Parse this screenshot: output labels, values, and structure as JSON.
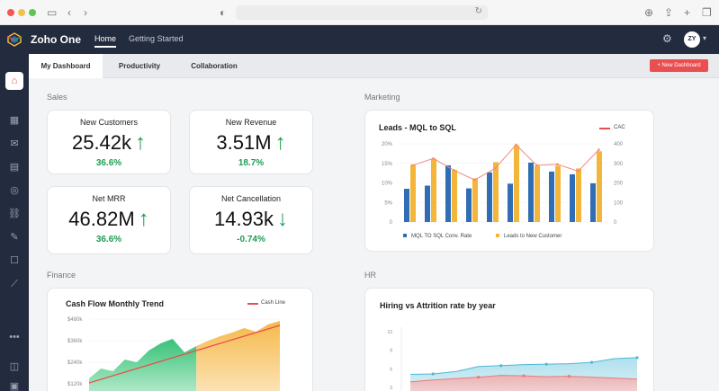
{
  "browser": {
    "icons": {
      "sidebar_toggle": "sidebar-icon",
      "back": "chevron-left-icon",
      "forward": "chevron-right-icon",
      "shield": "shield-icon",
      "reload": "reload-icon",
      "download": "download-icon",
      "share": "share-icon",
      "new_tab": "plus-icon",
      "tabs": "tabs-icon"
    }
  },
  "header": {
    "brand": "Zoho One",
    "nav": [
      {
        "label": "Home",
        "active": true
      },
      {
        "label": "Getting Started",
        "active": false
      }
    ],
    "avatar_initials": "ZY"
  },
  "sidebar": {
    "items": [
      "home-icon",
      "apps-icon",
      "inbox-icon",
      "analytics-icon",
      "finance-icon",
      "workflow-icon",
      "tools-icon",
      "chat-icon",
      "chart-icon",
      "more-icon",
      "help-icon",
      "collapse-icon"
    ]
  },
  "tabs": [
    {
      "label": "My Dashboard",
      "active": true
    },
    {
      "label": "Productivity",
      "active": false
    },
    {
      "label": "Collaboration",
      "active": false
    }
  ],
  "new_dashboard_label": "+ New Dashboard",
  "sections": {
    "sales": "Sales",
    "marketing": "Marketing",
    "finance": "Finance",
    "hr": "HR"
  },
  "kpis": [
    {
      "title": "New Customers",
      "value": "25.42k",
      "arrow": "↑",
      "pct": "36.6%"
    },
    {
      "title": "New Revenue",
      "value": "3.51M",
      "arrow": "↑",
      "pct": "18.7%"
    },
    {
      "title": "Net MRR",
      "value": "46.82M",
      "arrow": "↑",
      "pct": "36.6%"
    },
    {
      "title": "Net Cancellation",
      "value": "14.93k",
      "arrow": "↓",
      "pct": "-0.74%"
    }
  ],
  "colors": {
    "accent": "#e94f4f",
    "positive": "#1e9e52",
    "blue_series": "#2f6db5",
    "orange_series": "#f4b63a",
    "dark": "#232b3e"
  },
  "chart_data": [
    {
      "type": "bar",
      "title": "Leads - MQL to SQL",
      "categories": [
        "1",
        "2",
        "3",
        "4",
        "5",
        "6",
        "7",
        "8",
        "9",
        "10"
      ],
      "y_left_ticks": [
        "20%",
        "15%",
        "10%",
        "5%",
        "0"
      ],
      "y_right_ticks": [
        "400",
        "300",
        "200",
        "100",
        "0"
      ],
      "ylim_left": [
        0,
        20
      ],
      "ylim_right": [
        0,
        400
      ],
      "series": [
        {
          "name": "MQL TO SQL Conv. Rate",
          "values": [
            8.5,
            9.3,
            14.5,
            8.6,
            12.7,
            9.8,
            15.2,
            12.9,
            12.2,
            9.9
          ]
        },
        {
          "name": "Leads to New Customer",
          "values": [
            14.6,
            16.2,
            13.3,
            11.2,
            15.3,
            19.6,
            14.4,
            14.4,
            13.7,
            18.1
          ]
        },
        {
          "name": "CAC",
          "values": [
            290,
            325,
            265,
            215,
            275,
            395,
            290,
            295,
            260,
            370
          ]
        }
      ],
      "legend_placement": "bottom"
    },
    {
      "type": "area",
      "title": "Cash Flow Monthly Trend",
      "y_ticks": [
        "$480k",
        "$360k",
        "$240k",
        "$120k"
      ],
      "ylim": [
        120,
        480
      ],
      "series": [
        {
          "name": "Cash Flow",
          "values": [
            150,
            205,
            190,
            255,
            240,
            305,
            345,
            370,
            295,
            330,
            360,
            385,
            405,
            430,
            410,
            450,
            470
          ]
        },
        {
          "name": "Cash Line",
          "values": [
            125,
            145,
            165,
            185,
            205,
            225,
            245,
            265,
            285,
            305,
            325,
            345,
            365,
            385,
            405,
            425,
            445
          ]
        }
      ],
      "legend_placement": "top-right"
    },
    {
      "type": "area",
      "title": "Hiring vs Attrition rate by year",
      "y_ticks": [
        "12",
        "9",
        "6",
        "3"
      ],
      "ylim": [
        0,
        12
      ],
      "series": [
        {
          "name": "Hiring",
          "values": [
            2.8,
            2.9,
            3.4,
            4.5,
            4.7,
            4.9,
            5.0,
            5.1,
            5.4,
            6.2,
            6.4
          ]
        },
        {
          "name": "Attrition",
          "values": [
            1.2,
            1.6,
            1.9,
            2.2,
            2.6,
            2.5,
            2.3,
            2.4,
            2.2,
            2.0,
            1.8
          ]
        }
      ]
    }
  ]
}
